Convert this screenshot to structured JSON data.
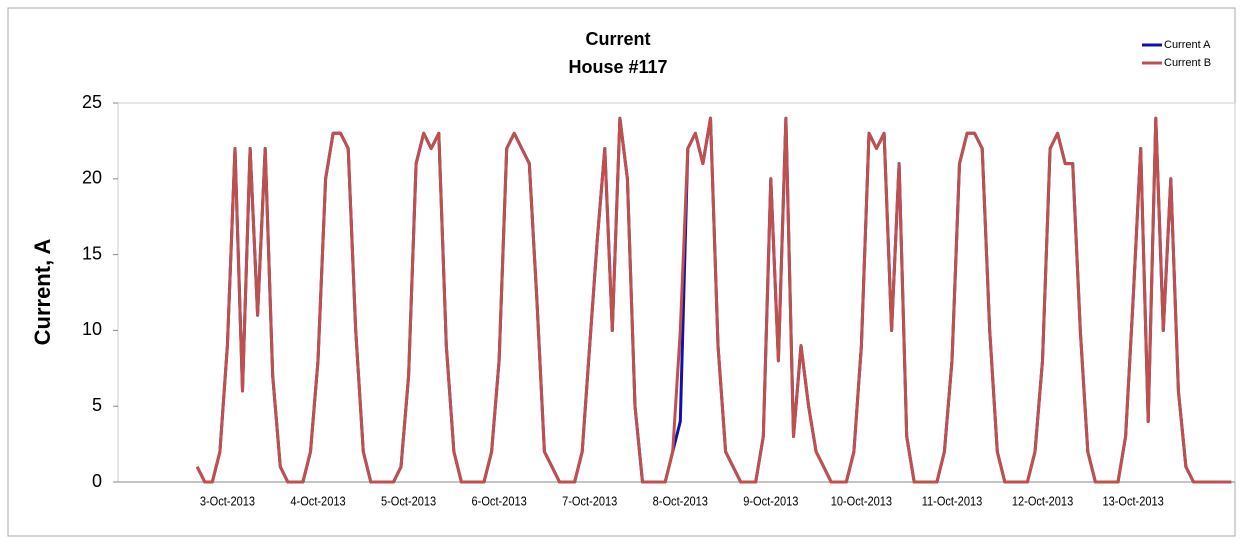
{
  "chart_data": {
    "type": "line",
    "title": "Current",
    "subtitle": "House #117",
    "y_label": "Current, A",
    "categories": [
      null,
      null,
      null,
      null,
      null,
      null,
      null,
      null,
      null,
      null,
      null,
      null,
      null,
      null,
      "3-Oct-2013",
      null,
      null,
      null,
      null,
      null,
      null,
      null,
      null,
      null,
      null,
      null,
      "4-Oct-2013",
      null,
      null,
      null,
      null,
      null,
      null,
      null,
      null,
      null,
      null,
      null,
      "5-Oct-2013",
      null,
      null,
      null,
      null,
      null,
      null,
      null,
      null,
      null,
      null,
      null,
      "6-Oct-2013",
      null,
      null,
      null,
      null,
      null,
      null,
      null,
      null,
      null,
      null,
      null,
      "7-Oct-2013",
      null,
      null,
      null,
      null,
      null,
      null,
      null,
      null,
      null,
      null,
      null,
      "8-Oct-2013",
      null,
      null,
      null,
      null,
      null,
      null,
      null,
      null,
      null,
      null,
      null,
      "9-Oct-2013",
      null,
      null,
      null,
      null,
      null,
      null,
      null,
      null,
      null,
      null,
      null,
      "10-Oct-2013",
      null,
      null,
      null,
      null,
      null,
      null,
      null,
      null,
      null,
      null,
      null,
      "11-Oct-2013",
      null,
      null,
      null,
      null,
      null,
      null,
      null,
      null,
      null,
      null,
      null,
      "12-Oct-2013",
      null,
      null,
      null,
      null,
      null,
      null,
      null,
      null,
      null,
      null,
      null,
      "13-Oct-2013",
      null,
      null,
      null,
      null,
      null,
      null,
      null,
      null,
      null,
      null,
      null,
      null,
      null
    ],
    "series": [
      {
        "name": "Current A",
        "color": "#1010b0",
        "values": [
          null,
          null,
          null,
          null,
          null,
          null,
          null,
          null,
          null,
          null,
          1,
          0,
          0,
          2,
          9,
          22,
          6,
          22,
          11,
          22,
          7,
          1,
          0,
          0,
          0,
          2,
          8,
          20,
          23,
          23,
          22,
          10,
          2,
          0,
          0,
          0,
          0,
          1,
          7,
          21,
          23,
          22,
          23,
          9,
          2,
          0,
          0,
          0,
          0,
          2,
          8,
          22,
          23,
          22,
          21,
          12,
          2,
          1,
          0,
          0,
          0,
          2,
          9,
          16,
          22,
          10,
          24,
          20,
          5,
          0,
          0,
          0,
          0,
          2,
          4,
          22,
          23,
          21,
          24,
          9,
          2,
          1,
          0,
          0,
          0,
          3,
          20,
          8,
          24,
          3,
          9,
          5,
          2,
          1,
          0,
          0,
          0,
          2,
          9,
          23,
          22,
          23,
          10,
          21,
          3,
          0,
          0,
          0,
          0,
          2,
          8,
          21,
          23,
          23,
          22,
          10,
          2,
          0,
          0,
          0,
          0,
          2,
          8,
          22,
          23,
          21,
          21,
          10,
          2,
          0,
          0,
          0,
          0,
          3,
          12,
          22,
          4,
          24,
          10,
          20,
          6,
          1,
          0,
          0,
          0,
          0,
          0,
          0
        ]
      },
      {
        "name": "Current B",
        "color": "#c0504d",
        "values": [
          null,
          null,
          null,
          null,
          null,
          null,
          null,
          null,
          null,
          null,
          1,
          0,
          0,
          2,
          9,
          22,
          6,
          22,
          11,
          22,
          7,
          1,
          0,
          0,
          0,
          2,
          8,
          20,
          23,
          23,
          22,
          10,
          2,
          0,
          0,
          0,
          0,
          1,
          7,
          21,
          23,
          22,
          23,
          9,
          2,
          0,
          0,
          0,
          0,
          2,
          8,
          22,
          23,
          22,
          21,
          12,
          2,
          1,
          0,
          0,
          0,
          2,
          9,
          16,
          22,
          10,
          24,
          20,
          5,
          0,
          0,
          0,
          0,
          2,
          10,
          22,
          23,
          21,
          24,
          9,
          2,
          1,
          0,
          0,
          0,
          3,
          20,
          8,
          24,
          3,
          9,
          5,
          2,
          1,
          0,
          0,
          0,
          2,
          9,
          23,
          22,
          23,
          10,
          21,
          3,
          0,
          0,
          0,
          0,
          2,
          8,
          21,
          23,
          23,
          22,
          10,
          2,
          0,
          0,
          0,
          0,
          2,
          8,
          22,
          23,
          21,
          21,
          10,
          2,
          0,
          0,
          0,
          0,
          3,
          12,
          22,
          4,
          24,
          10,
          20,
          6,
          1,
          0,
          0,
          0,
          0,
          0,
          0
        ]
      }
    ],
    "ylim": [
      0,
      25
    ],
    "yticks": [
      0,
      5,
      10,
      15,
      20,
      25
    ],
    "legend": "top-right"
  }
}
